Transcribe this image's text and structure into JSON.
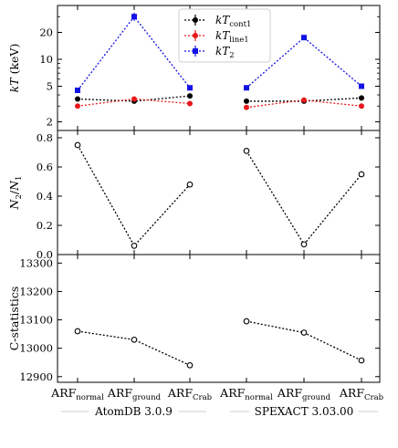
{
  "chart_data": {
    "type": "line",
    "categories": [
      "ARF_normal",
      "ARF_ground",
      "ARF_Crab",
      "ARF_normal",
      "ARF_ground",
      "ARF_Crab"
    ],
    "category_labels": [
      {
        "main": "ARF",
        "sub": "normal"
      },
      {
        "main": "ARF",
        "sub": "ground"
      },
      {
        "main": "ARF",
        "sub": "Crab"
      },
      {
        "main": "ARF",
        "sub": "normal"
      },
      {
        "main": "ARF",
        "sub": "ground"
      },
      {
        "main": "ARF",
        "sub": "Crab"
      }
    ],
    "groups": [
      {
        "label": "AtomDB 3.0.9",
        "indices": [
          0,
          1,
          2
        ]
      },
      {
        "label": "SPEXACT 3.03.00",
        "indices": [
          3,
          4,
          5
        ]
      }
    ],
    "panels": [
      {
        "id": "kT",
        "ylabel": {
          "main": "kT",
          "unit": "(keV)"
        },
        "yscale": "log",
        "ylim": [
          1.6,
          40
        ],
        "yticks": [
          2,
          5,
          10,
          20
        ],
        "series": [
          {
            "name": "kT_cont1",
            "label_main": "kT",
            "label_sub": "cont1",
            "color": "#000000",
            "marker": "circle",
            "values": [
              3.6,
              3.4,
              3.9,
              3.4,
              3.4,
              3.7
            ]
          },
          {
            "name": "kT_line1",
            "label_main": "kT",
            "label_sub": "line1",
            "color": "#e8191c",
            "marker": "circle",
            "values": [
              3.0,
              3.6,
              3.2,
              2.9,
              3.5,
              3.0
            ]
          },
          {
            "name": "kT_2",
            "label_main": "kT",
            "label_sub": "2",
            "color": "#1212e6",
            "marker": "square",
            "values": [
              4.5,
              30.0,
              4.8,
              4.8,
              17.5,
              5.0
            ],
            "errors": [
              0.3,
              3.0,
              0.3,
              0.3,
              1.0,
              0.3
            ]
          }
        ]
      },
      {
        "id": "ratio",
        "ylabel": {
          "main": "N",
          "sub1": "2",
          "sub2": "1"
        },
        "yscale": "linear",
        "ylim": [
          0.0,
          0.85
        ],
        "yticks": [
          0.0,
          0.2,
          0.4,
          0.6,
          0.8
        ],
        "tick_labels": [
          "0.0",
          "0.2",
          "0.4",
          "0.6",
          "0.8"
        ],
        "series": [
          {
            "name": "N2/N1",
            "color": "#000000",
            "marker": "open-circle",
            "values": [
              0.75,
              0.06,
              0.48,
              0.71,
              0.07,
              0.55
            ]
          }
        ]
      },
      {
        "id": "cstat",
        "ylabel": {
          "main": "C-statistics"
        },
        "yscale": "linear",
        "ylim": [
          12880,
          13330
        ],
        "yticks": [
          12900,
          13000,
          13100,
          13200,
          13300
        ],
        "tick_labels": [
          "12900",
          "13000",
          "13100",
          "13200",
          "13300"
        ],
        "series": [
          {
            "name": "C-statistics",
            "color": "#000000",
            "marker": "open-circle",
            "values": [
              13060,
              13030,
              12940,
              13095,
              13055,
              12957
            ]
          }
        ]
      }
    ]
  }
}
